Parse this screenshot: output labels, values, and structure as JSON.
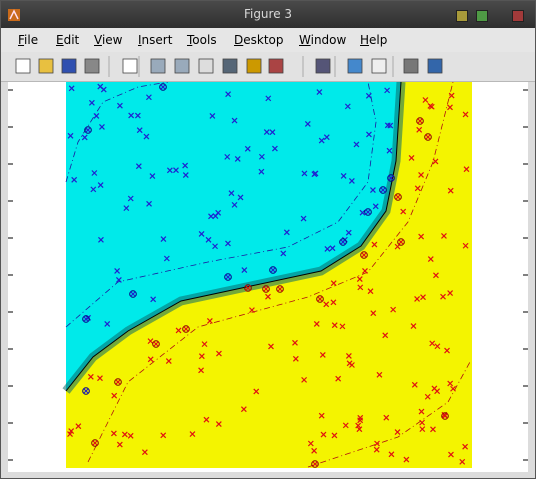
{
  "window": {
    "title": "Figure 3"
  },
  "menu": {
    "items": [
      "File",
      "Edit",
      "View",
      "Insert",
      "Tools",
      "Desktop",
      "Window",
      "Help"
    ]
  }
}
